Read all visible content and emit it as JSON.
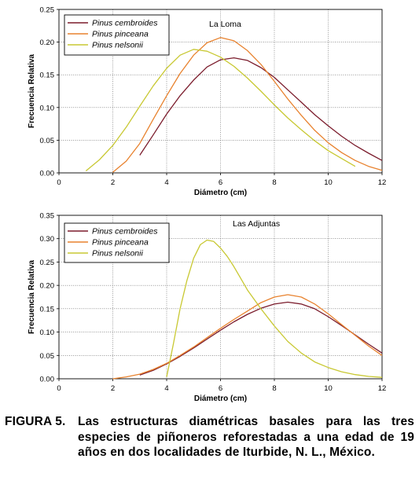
{
  "chart_data": [
    {
      "type": "line",
      "annotation": "La Loma",
      "xlabel": "Diámetro (cm)",
      "ylabel": "Frecuencia Relativa",
      "xlim": [
        0,
        12
      ],
      "ylim": [
        0,
        0.25
      ],
      "xticks": [
        "0",
        "2",
        "4",
        "6",
        "8",
        "10",
        "12"
      ],
      "yticks": [
        "0.00",
        "0.05",
        "0.10",
        "0.15",
        "0.20",
        "0.25"
      ],
      "grid": true,
      "legend_position": "top-left",
      "series": [
        {
          "name": "Pinus cembroides",
          "color": "#7b1c2c",
          "x": [
            3,
            3.5,
            4,
            4.5,
            5,
            5.5,
            6,
            6.5,
            7,
            7.5,
            8,
            8.5,
            9,
            9.5,
            10,
            10.5,
            11,
            11.5,
            12
          ],
          "y": [
            0.027,
            0.058,
            0.09,
            0.118,
            0.142,
            0.162,
            0.173,
            0.176,
            0.172,
            0.161,
            0.146,
            0.127,
            0.108,
            0.089,
            0.072,
            0.056,
            0.042,
            0.03,
            0.019
          ]
        },
        {
          "name": "Pinus pinceana",
          "color": "#e8822e",
          "x": [
            2,
            2.5,
            3,
            3.5,
            4,
            4.5,
            5,
            5.5,
            6,
            6.5,
            7,
            7.5,
            8,
            8.5,
            9,
            9.5,
            10,
            10.5,
            11,
            11.5,
            12
          ],
          "y": [
            0.001,
            0.018,
            0.045,
            0.082,
            0.118,
            0.152,
            0.18,
            0.199,
            0.207,
            0.202,
            0.187,
            0.166,
            0.14,
            0.113,
            0.088,
            0.065,
            0.046,
            0.031,
            0.019,
            0.01,
            0.004
          ]
        },
        {
          "name": "Pinus nelsonii",
          "color": "#c8c832",
          "x": [
            1,
            1.5,
            2,
            2.5,
            3,
            3.5,
            4,
            4.5,
            5,
            5.5,
            6,
            6.5,
            7,
            7.5,
            8,
            8.5,
            9,
            9.5,
            10,
            10.5,
            11
          ],
          "y": [
            0.003,
            0.02,
            0.042,
            0.07,
            0.102,
            0.133,
            0.16,
            0.18,
            0.189,
            0.186,
            0.177,
            0.163,
            0.145,
            0.125,
            0.104,
            0.084,
            0.066,
            0.049,
            0.034,
            0.022,
            0.01
          ]
        }
      ]
    },
    {
      "type": "line",
      "annotation": "Las Adjuntas",
      "xlabel": "Diámetro (cm)",
      "ylabel": "Frecuencia Relativa",
      "xlim": [
        0,
        12
      ],
      "ylim": [
        0,
        0.35
      ],
      "xticks": [
        "0",
        "2",
        "4",
        "6",
        "8",
        "10",
        "12"
      ],
      "yticks": [
        "0.00",
        "0.05",
        "0.10",
        "0.15",
        "0.20",
        "0.25",
        "0.30",
        "0.35"
      ],
      "grid": true,
      "legend_position": "top-left",
      "series": [
        {
          "name": "Pinus cembroides",
          "color": "#7b1c2c",
          "x": [
            3,
            3.5,
            4,
            4.5,
            5,
            5.5,
            6,
            6.5,
            7,
            7.5,
            8,
            8.5,
            9,
            9.5,
            10,
            10.5,
            11,
            11.5,
            12
          ],
          "y": [
            0.008,
            0.018,
            0.032,
            0.048,
            0.066,
            0.085,
            0.104,
            0.122,
            0.138,
            0.151,
            0.16,
            0.164,
            0.16,
            0.15,
            0.133,
            0.114,
            0.094,
            0.074,
            0.055
          ]
        },
        {
          "name": "Pinus pinceana",
          "color": "#e8822e",
          "x": [
            2,
            2.5,
            3,
            3.5,
            4,
            4.5,
            5,
            5.5,
            6,
            6.5,
            7,
            7.5,
            8,
            8.5,
            9,
            9.5,
            10,
            10.5,
            11,
            11.5,
            12
          ],
          "y": [
            0.0,
            0.004,
            0.01,
            0.02,
            0.033,
            0.05,
            0.068,
            0.088,
            0.108,
            0.127,
            0.145,
            0.163,
            0.175,
            0.18,
            0.175,
            0.16,
            0.139,
            0.116,
            0.093,
            0.07,
            0.05
          ]
        },
        {
          "name": "Pinus nelsonii",
          "color": "#c8c832",
          "x": [
            4,
            4.25,
            4.5,
            4.75,
            5,
            5.25,
            5.5,
            5.75,
            6,
            6.25,
            6.5,
            6.75,
            7,
            7.5,
            8,
            8.5,
            9,
            9.5,
            10,
            10.5,
            11,
            11.5,
            12
          ],
          "y": [
            0.004,
            0.075,
            0.15,
            0.21,
            0.258,
            0.287,
            0.297,
            0.294,
            0.28,
            0.262,
            0.24,
            0.215,
            0.19,
            0.15,
            0.113,
            0.08,
            0.055,
            0.036,
            0.024,
            0.015,
            0.009,
            0.005,
            0.003
          ]
        }
      ]
    }
  ],
  "caption": {
    "label": "FIGURA 5.",
    "text": "Las estructuras diamétricas basales para las tres especies de piñoneros reforestadas a una edad de 19 años en dos localidades de Iturbide, N. L., México."
  }
}
